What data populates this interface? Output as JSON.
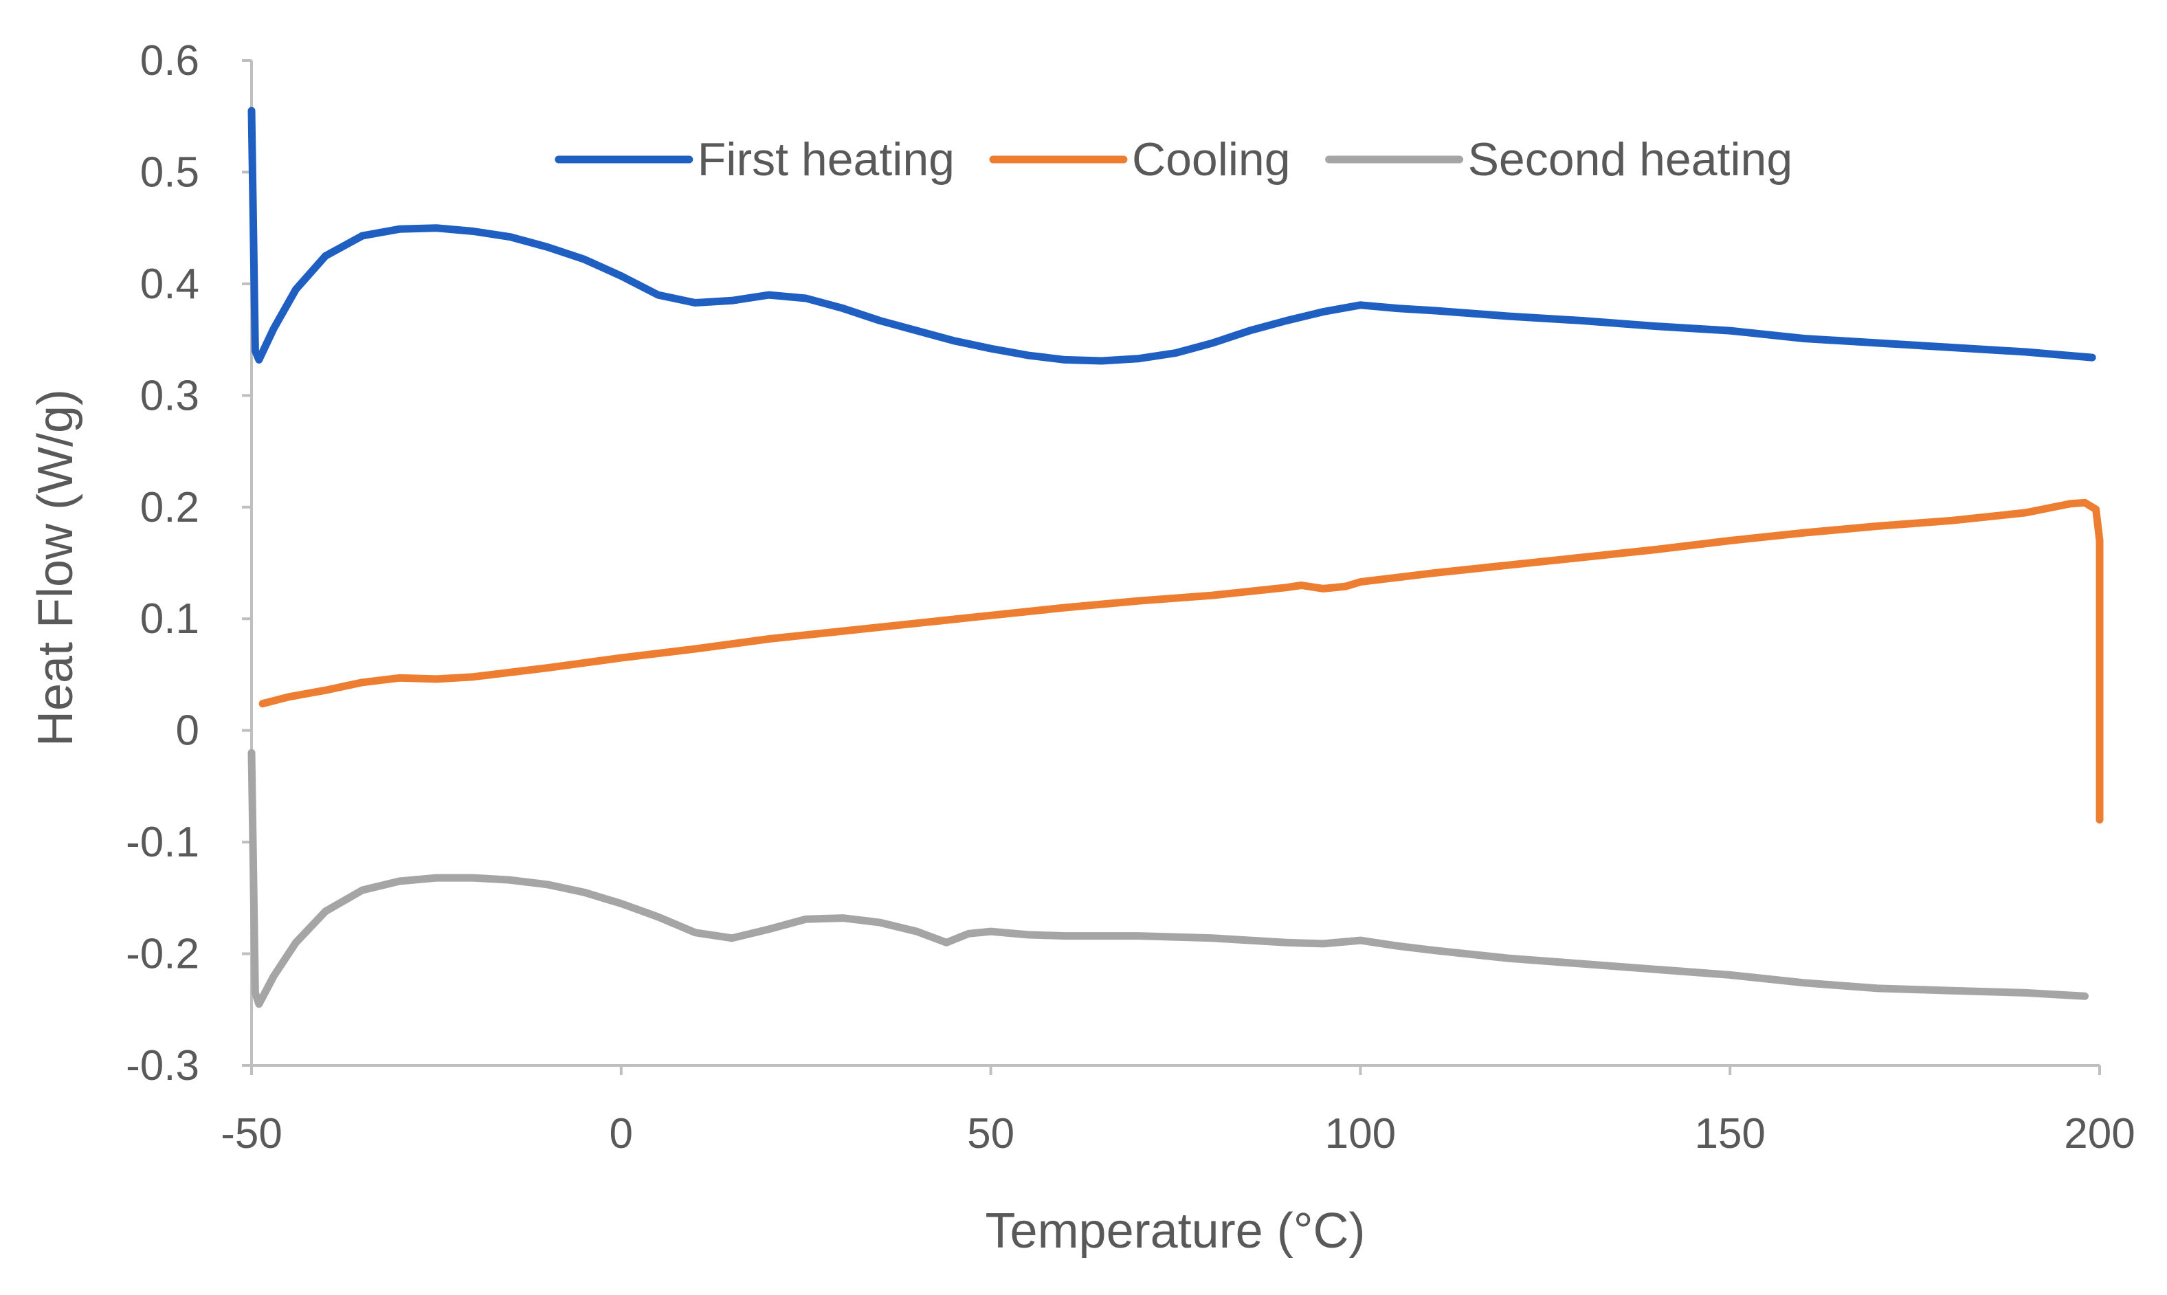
{
  "chart_data": {
    "type": "line",
    "title": "",
    "xlabel": "Temperature (°C)",
    "ylabel": "Heat Flow (W/g)",
    "xlim": [
      -50,
      200
    ],
    "ylim": [
      -0.3,
      0.6
    ],
    "x_ticks": [
      -50,
      0,
      50,
      100,
      150,
      200
    ],
    "y_ticks": [
      0.6,
      0.5,
      0.4,
      0.3,
      0.2,
      0.1,
      0,
      -0.1,
      -0.2,
      -0.3
    ],
    "grid": false,
    "legend_position": "top-center",
    "series": [
      {
        "name": "First heating",
        "color": "#1f5fc1",
        "points": [
          [
            -50,
            0.555
          ],
          [
            -49.5,
            0.34
          ],
          [
            -49,
            0.332
          ],
          [
            -47,
            0.36
          ],
          [
            -44,
            0.395
          ],
          [
            -40,
            0.425
          ],
          [
            -35,
            0.443
          ],
          [
            -30,
            0.449
          ],
          [
            -25,
            0.45
          ],
          [
            -20,
            0.447
          ],
          [
            -15,
            0.442
          ],
          [
            -10,
            0.433
          ],
          [
            -5,
            0.422
          ],
          [
            0,
            0.407
          ],
          [
            5,
            0.39
          ],
          [
            10,
            0.383
          ],
          [
            15,
            0.385
          ],
          [
            20,
            0.39
          ],
          [
            25,
            0.387
          ],
          [
            30,
            0.378
          ],
          [
            35,
            0.367
          ],
          [
            40,
            0.358
          ],
          [
            45,
            0.349
          ],
          [
            50,
            0.342
          ],
          [
            55,
            0.336
          ],
          [
            60,
            0.332
          ],
          [
            65,
            0.331
          ],
          [
            70,
            0.333
          ],
          [
            75,
            0.338
          ],
          [
            80,
            0.347
          ],
          [
            85,
            0.358
          ],
          [
            90,
            0.367
          ],
          [
            95,
            0.375
          ],
          [
            100,
            0.381
          ],
          [
            105,
            0.378
          ],
          [
            110,
            0.376
          ],
          [
            120,
            0.371
          ],
          [
            130,
            0.367
          ],
          [
            140,
            0.362
          ],
          [
            150,
            0.358
          ],
          [
            160,
            0.351
          ],
          [
            170,
            0.347
          ],
          [
            180,
            0.343
          ],
          [
            190,
            0.339
          ],
          [
            199,
            0.334
          ]
        ]
      },
      {
        "name": "Cooling",
        "color": "#ed7d31",
        "points": [
          [
            -48.5,
            0.024
          ],
          [
            -45,
            0.03
          ],
          [
            -40,
            0.036
          ],
          [
            -35,
            0.043
          ],
          [
            -30,
            0.047
          ],
          [
            -25,
            0.046
          ],
          [
            -20,
            0.048
          ],
          [
            -10,
            0.056
          ],
          [
            0,
            0.065
          ],
          [
            10,
            0.073
          ],
          [
            20,
            0.082
          ],
          [
            30,
            0.089
          ],
          [
            40,
            0.096
          ],
          [
            50,
            0.103
          ],
          [
            60,
            0.11
          ],
          [
            70,
            0.116
          ],
          [
            80,
            0.121
          ],
          [
            90,
            0.128
          ],
          [
            92,
            0.13
          ],
          [
            95,
            0.127
          ],
          [
            98,
            0.129
          ],
          [
            100,
            0.133
          ],
          [
            110,
            0.141
          ],
          [
            120,
            0.148
          ],
          [
            130,
            0.155
          ],
          [
            140,
            0.162
          ],
          [
            150,
            0.17
          ],
          [
            160,
            0.177
          ],
          [
            170,
            0.183
          ],
          [
            180,
            0.188
          ],
          [
            190,
            0.195
          ],
          [
            196,
            0.203
          ],
          [
            198,
            0.204
          ],
          [
            199.5,
            0.198
          ],
          [
            200,
            0.17
          ],
          [
            200,
            -0.08
          ]
        ]
      },
      {
        "name": "Second heating",
        "color": "#a5a5a5",
        "points": [
          [
            -50,
            -0.02
          ],
          [
            -49.5,
            -0.235
          ],
          [
            -49,
            -0.245
          ],
          [
            -47,
            -0.22
          ],
          [
            -44,
            -0.19
          ],
          [
            -40,
            -0.162
          ],
          [
            -35,
            -0.143
          ],
          [
            -30,
            -0.135
          ],
          [
            -25,
            -0.132
          ],
          [
            -20,
            -0.132
          ],
          [
            -15,
            -0.134
          ],
          [
            -10,
            -0.138
          ],
          [
            -5,
            -0.145
          ],
          [
            0,
            -0.155
          ],
          [
            5,
            -0.167
          ],
          [
            10,
            -0.181
          ],
          [
            15,
            -0.186
          ],
          [
            20,
            -0.178
          ],
          [
            25,
            -0.169
          ],
          [
            30,
            -0.168
          ],
          [
            35,
            -0.172
          ],
          [
            40,
            -0.18
          ],
          [
            44,
            -0.19
          ],
          [
            47,
            -0.182
          ],
          [
            50,
            -0.18
          ],
          [
            55,
            -0.183
          ],
          [
            60,
            -0.184
          ],
          [
            70,
            -0.184
          ],
          [
            80,
            -0.186
          ],
          [
            90,
            -0.19
          ],
          [
            95,
            -0.191
          ],
          [
            100,
            -0.188
          ],
          [
            105,
            -0.193
          ],
          [
            110,
            -0.197
          ],
          [
            120,
            -0.204
          ],
          [
            130,
            -0.209
          ],
          [
            140,
            -0.214
          ],
          [
            150,
            -0.219
          ],
          [
            160,
            -0.226
          ],
          [
            170,
            -0.231
          ],
          [
            180,
            -0.233
          ],
          [
            190,
            -0.235
          ],
          [
            198,
            -0.238
          ]
        ]
      }
    ]
  }
}
